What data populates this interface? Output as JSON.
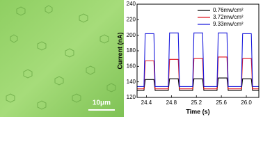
{
  "image": {
    "scale_bar": "10μm"
  },
  "chart_data": {
    "type": "line",
    "x_label": "Time (s)",
    "y_label": "Current (nA)",
    "x": [
      24.25,
      24.36,
      24.38,
      24.52,
      24.54,
      24.75,
      24.77,
      24.91,
      24.93,
      25.14,
      25.16,
      25.3,
      25.32,
      25.53,
      25.55,
      25.69,
      25.71,
      25.92,
      25.94,
      26.08,
      26.1,
      26.2
    ],
    "series": [
      {
        "name": "0.76mw/cm²",
        "color": "#000000",
        "values": [
          129,
          129,
          143,
          143,
          129,
          129,
          144,
          144,
          129,
          129,
          144,
          144,
          129,
          129,
          145,
          145,
          129,
          129,
          144,
          144,
          129,
          129
        ]
      },
      {
        "name": "3.72mw/cm²",
        "color": "#e0141e",
        "values": [
          131,
          131,
          167,
          167,
          131,
          131,
          169,
          169,
          131,
          131,
          170,
          170,
          131,
          131,
          172,
          172,
          131,
          131,
          170,
          170,
          131,
          131
        ]
      },
      {
        "name": "9.33mw/cm²",
        "color": "#1a1adc",
        "values": [
          134,
          134,
          202,
          202,
          134,
          134,
          203,
          203,
          134,
          134,
          203,
          203,
          134,
          134,
          203,
          203,
          134,
          134,
          202,
          202,
          134,
          134
        ]
      }
    ],
    "xlim": [
      24.25,
      26.2
    ],
    "ylim": [
      120,
      240
    ],
    "xticks": [
      24.4,
      24.8,
      25.2,
      25.6,
      {
        "value": 26,
        "label": "26.0"
      }
    ],
    "yticks": [
      120,
      140,
      160,
      180,
      200,
      220,
      240
    ],
    "legend": "upper right"
  }
}
